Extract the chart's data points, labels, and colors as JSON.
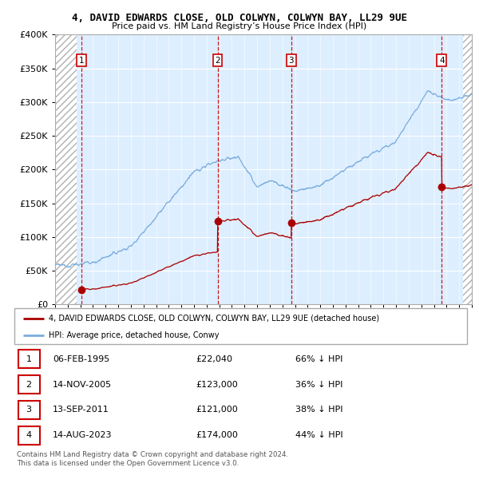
{
  "title": "4, DAVID EDWARDS CLOSE, OLD COLWYN, COLWYN BAY, LL29 9UE",
  "subtitle": "Price paid vs. HM Land Registry’s House Price Index (HPI)",
  "ylim": [
    0,
    400000
  ],
  "yticks": [
    0,
    50000,
    100000,
    150000,
    200000,
    250000,
    300000,
    350000,
    400000
  ],
  "ytick_labels": [
    "£0",
    "£50K",
    "£100K",
    "£150K",
    "£200K",
    "£250K",
    "£300K",
    "£350K",
    "£400K"
  ],
  "purchases": [
    {
      "label": "1",
      "date_num": 1995.09,
      "price": 22040
    },
    {
      "label": "2",
      "date_num": 2005.87,
      "price": 123000
    },
    {
      "label": "3",
      "date_num": 2011.71,
      "price": 121000
    },
    {
      "label": "4",
      "date_num": 2023.62,
      "price": 174000
    }
  ],
  "purchase_color": "#aa0000",
  "hpi_color": "#7aaddd",
  "legend_label_purchase": "4, DAVID EDWARDS CLOSE, OLD COLWYN, COLWYN BAY, LL29 9UE (detached house)",
  "legend_label_hpi": "HPI: Average price, detached house, Conwy",
  "table_entries": [
    {
      "num": "1",
      "date": "06-FEB-1995",
      "price": "£22,040",
      "pct": "66% ↓ HPI"
    },
    {
      "num": "2",
      "date": "14-NOV-2005",
      "price": "£123,000",
      "pct": "36% ↓ HPI"
    },
    {
      "num": "3",
      "date": "13-SEP-2011",
      "price": "£121,000",
      "pct": "38% ↓ HPI"
    },
    {
      "num": "4",
      "date": "14-AUG-2023",
      "price": "£174,000",
      "pct": "44% ↓ HPI"
    }
  ],
  "footnote": "Contains HM Land Registry data © Crown copyright and database right 2024.\nThis data is licensed under the Open Government Licence v3.0.",
  "xmin": 1993,
  "xmax": 2026,
  "hatch_left_end": 1994.7,
  "hatch_right_start": 2025.3,
  "background_color": "#ddeeff",
  "hatch_bg_color": "#e8e8e8"
}
